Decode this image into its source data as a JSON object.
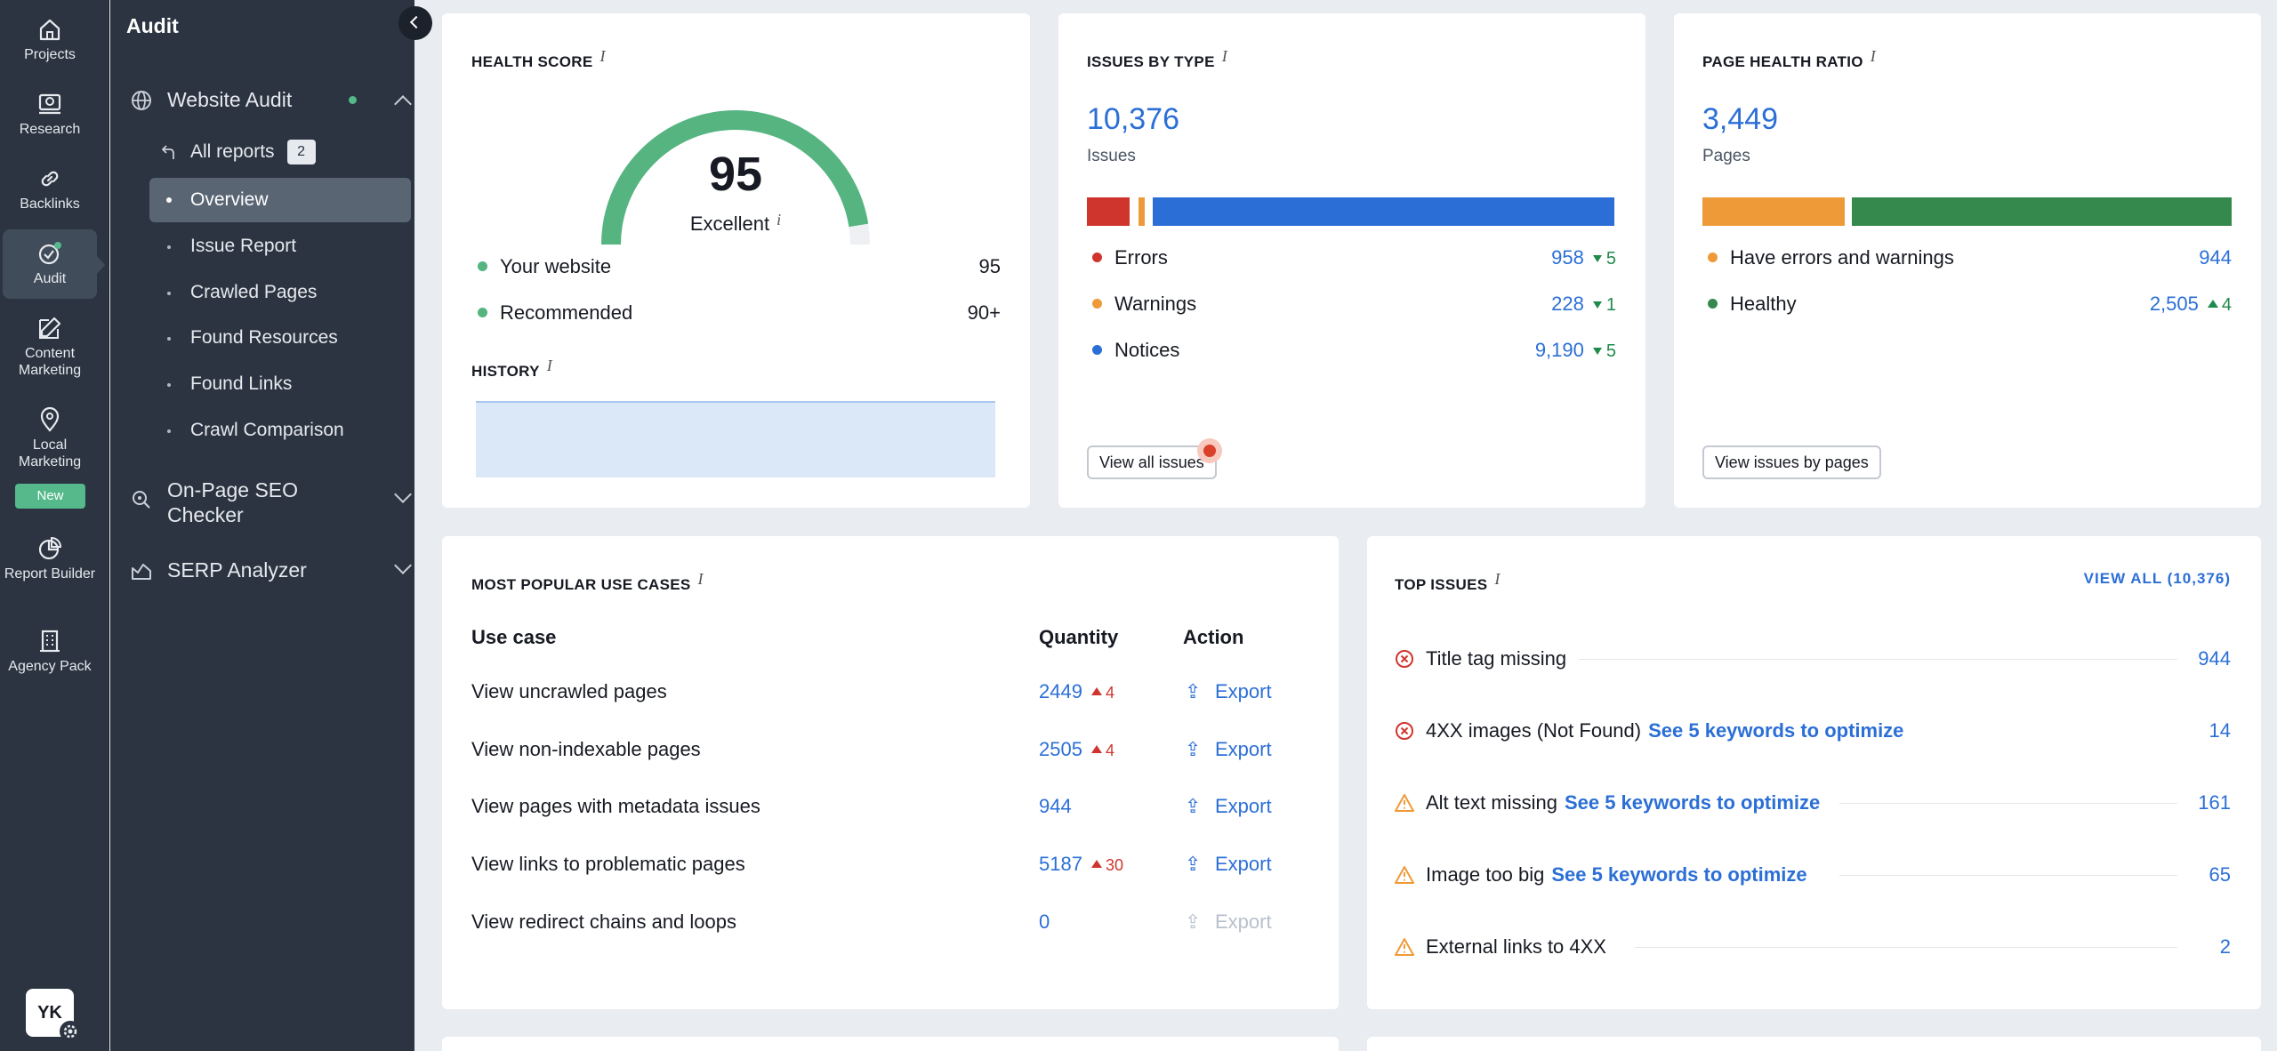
{
  "rail": {
    "items": [
      {
        "label": "Projects",
        "icon": "home-icon"
      },
      {
        "label": "Research",
        "icon": "research-icon"
      },
      {
        "label": "Backlinks",
        "icon": "link-icon"
      },
      {
        "label": "Audit",
        "icon": "audit-icon"
      },
      {
        "label": "Content Marketing",
        "icon": "pencil-icon"
      },
      {
        "label": "Local Marketing",
        "icon": "pin-icon"
      },
      {
        "label": "Report Builder",
        "icon": "pie-icon"
      },
      {
        "label": "Agency Pack",
        "icon": "building-icon"
      }
    ],
    "new_badge": "New",
    "avatar": "YK"
  },
  "nav": {
    "title": "Audit",
    "website_audit": "Website Audit",
    "subitems": [
      "All reports",
      "Overview",
      "Issue Report",
      "Crawled Pages",
      "Found Resources",
      "Found Links",
      "Crawl Comparison"
    ],
    "all_reports_badge": "2",
    "onpage": "On-Page SEO Checker",
    "serp": "SERP Analyzer"
  },
  "health": {
    "title": "HEALTH SCORE",
    "info": "i",
    "score": "95",
    "score_fraction": 0.95,
    "score_label": "Excellent",
    "rows": [
      {
        "label": "Your website",
        "value": "95"
      },
      {
        "label": "Recommended",
        "value": "90+"
      }
    ],
    "history_title": "HISTORY"
  },
  "issues": {
    "title": "ISSUES BY TYPE",
    "total": "10,376",
    "total_label": "Issues",
    "rows": [
      {
        "label": "Errors",
        "value": "958",
        "delta": "5"
      },
      {
        "label": "Warnings",
        "value": "228",
        "delta": "1"
      },
      {
        "label": "Notices",
        "value": "9,190",
        "delta": "5"
      }
    ],
    "button": "View all issues"
  },
  "ratio": {
    "title": "PAGE HEALTH RATIO",
    "total": "3,449",
    "total_label": "Pages",
    "rows": [
      {
        "label": "Have errors and warnings",
        "value": "944",
        "delta": ""
      },
      {
        "label": "Healthy",
        "value": "2,505",
        "delta": "4"
      }
    ],
    "button": "View issues by pages"
  },
  "usecases": {
    "title": "MOST POPULAR USE CASES",
    "col_use": "Use case",
    "col_qty": "Quantity",
    "col_action": "Action",
    "rows": [
      {
        "label": "View uncrawled pages",
        "qty": "2449",
        "delta": "4",
        "action": "Export"
      },
      {
        "label": "View non-indexable pages",
        "qty": "2505",
        "delta": "4",
        "action": "Export"
      },
      {
        "label": "View pages with metadata issues",
        "qty": "944",
        "delta": "",
        "action": "Export"
      },
      {
        "label": "View links to problematic pages",
        "qty": "5187",
        "delta": "30",
        "action": "Export"
      },
      {
        "label": "View redirect chains and loops",
        "qty": "0",
        "delta": "",
        "action": "Export"
      }
    ]
  },
  "top": {
    "title": "TOP ISSUES",
    "view_all": "VIEW ALL (10,376)",
    "rows": [
      {
        "label": "Title tag missing",
        "link": "",
        "value": "944",
        "kind": "error"
      },
      {
        "label": "4XX images (Not Found)",
        "link": "See 5 keywords to optimize",
        "value": "14",
        "kind": "error"
      },
      {
        "label": "Alt text missing",
        "link": "See 5 keywords to optimize",
        "value": "161",
        "kind": "warning"
      },
      {
        "label": "Image too big",
        "link": "See 5 keywords to optimize",
        "value": "65",
        "kind": "warning"
      },
      {
        "label": "External links to 4XX",
        "link": "",
        "value": "2",
        "kind": "warning"
      }
    ]
  },
  "colors": {
    "error": "#d0352d",
    "warning": "#ef9a38",
    "notice": "#2b6fd6",
    "healthy": "#35894c",
    "accent": "#56b98b"
  }
}
